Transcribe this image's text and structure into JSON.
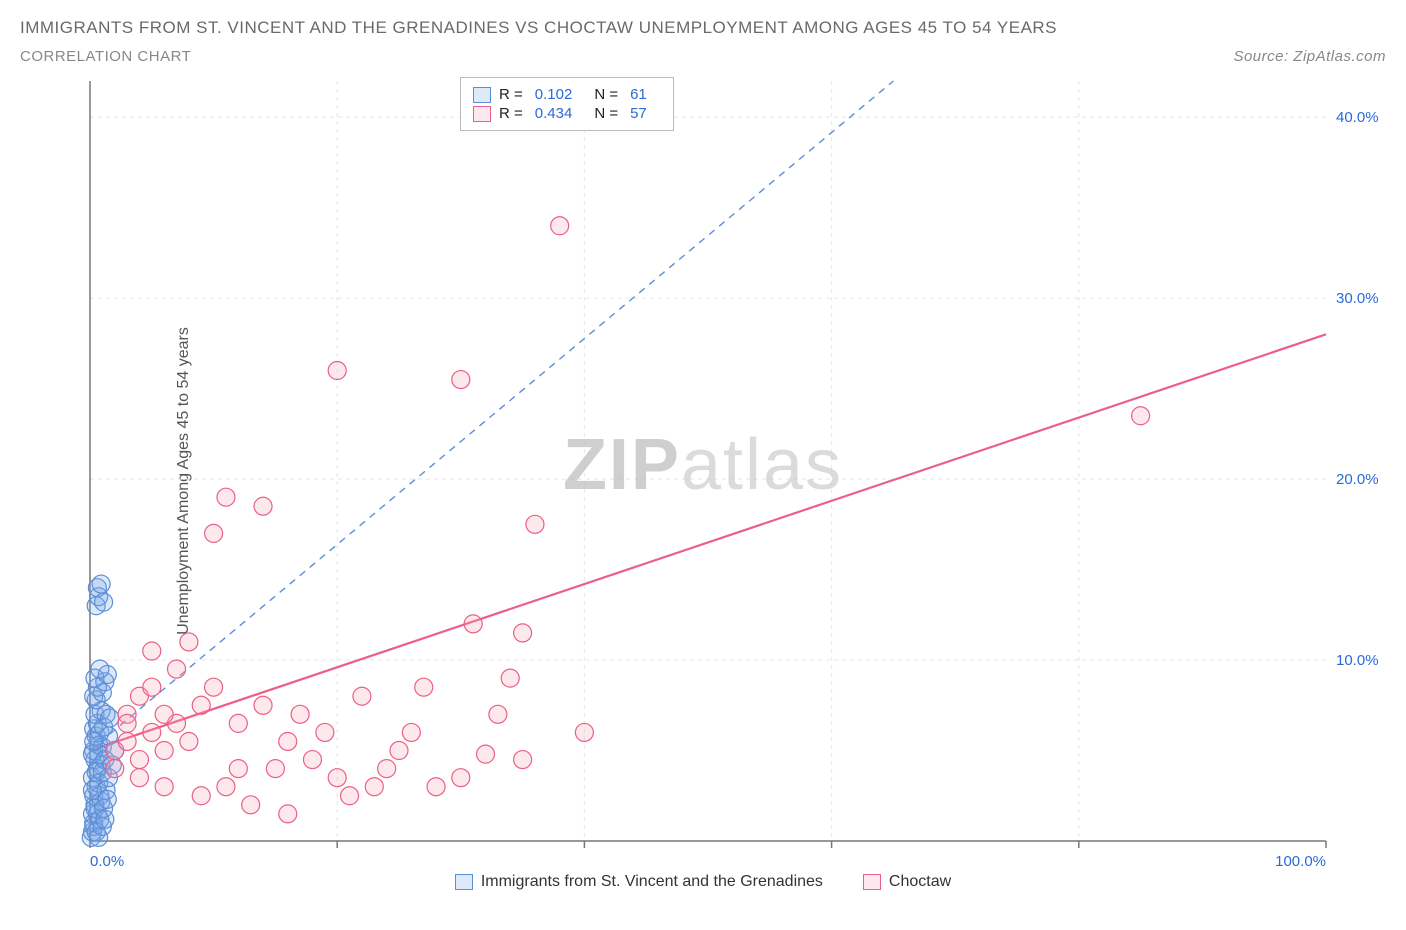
{
  "title": "IMMIGRANTS FROM ST. VINCENT AND THE GRENADINES VS CHOCTAW UNEMPLOYMENT AMONG AGES 45 TO 54 YEARS",
  "subtitle": "CORRELATION CHART",
  "source": "Source: ZipAtlas.com",
  "watermark_bold": "ZIP",
  "watermark_light": "atlas",
  "y_axis_label": "Unemployment Among Ages 45 to 54 years",
  "chart": {
    "type": "scatter",
    "xlim": [
      0,
      100
    ],
    "ylim": [
      0,
      42
    ],
    "x_ticks": [
      0,
      20,
      40,
      60,
      80,
      100
    ],
    "x_tick_labels": [
      "0.0%",
      "",
      "",
      "",
      "",
      "100.0%"
    ],
    "y_ticks": [
      10,
      20,
      30,
      40
    ],
    "y_tick_labels": [
      "10.0%",
      "20.0%",
      "30.0%",
      "40.0%"
    ],
    "grid_color": "#e5e5e5",
    "background_color": "#ffffff",
    "axis_color": "#777777",
    "marker_radius": 9,
    "marker_stroke_width": 1.2,
    "series": [
      {
        "name": "Immigrants from St. Vincent and the Grenadines",
        "fill_color": "#7aa8e6",
        "fill_opacity": 0.25,
        "stroke_color": "#5b8ed8",
        "trend": {
          "style": "dashed",
          "color": "#5b8ed8",
          "width": 1.4,
          "x1": 0,
          "y1": 5,
          "x2": 65,
          "y2": 42
        },
        "R": "0.102",
        "N": "61",
        "points": [
          [
            0.1,
            0.2
          ],
          [
            0.2,
            0.5
          ],
          [
            0.3,
            1.0
          ],
          [
            0.2,
            1.5
          ],
          [
            0.4,
            2.0
          ],
          [
            0.3,
            2.5
          ],
          [
            0.5,
            3.0
          ],
          [
            0.2,
            3.5
          ],
          [
            0.6,
            4.0
          ],
          [
            0.4,
            4.5
          ],
          [
            0.3,
            5.0
          ],
          [
            0.7,
            5.3
          ],
          [
            0.5,
            5.8
          ],
          [
            0.3,
            6.2
          ],
          [
            0.8,
            6.0
          ],
          [
            0.6,
            6.5
          ],
          [
            0.4,
            7.0
          ],
          [
            0.9,
            7.2
          ],
          [
            0.5,
            7.8
          ],
          [
            0.3,
            8.0
          ],
          [
            1.0,
            8.2
          ],
          [
            0.6,
            8.5
          ],
          [
            1.2,
            8.8
          ],
          [
            0.4,
            9.0
          ],
          [
            1.4,
            9.2
          ],
          [
            0.8,
            9.5
          ],
          [
            1.0,
            5.2
          ],
          [
            1.5,
            5.8
          ],
          [
            0.7,
            4.8
          ],
          [
            1.1,
            6.3
          ],
          [
            1.3,
            7.0
          ],
          [
            0.9,
            4.2
          ],
          [
            1.6,
            6.8
          ],
          [
            0.5,
            3.8
          ],
          [
            0.2,
            4.8
          ],
          [
            0.3,
            5.5
          ],
          [
            0.7,
            3.2
          ],
          [
            1.0,
            3.8
          ],
          [
            1.2,
            4.5
          ],
          [
            0.8,
            2.5
          ],
          [
            0.5,
            13.0
          ],
          [
            0.7,
            13.5
          ],
          [
            0.6,
            14.0
          ],
          [
            0.9,
            14.2
          ],
          [
            1.1,
            13.2
          ],
          [
            0.3,
            0.8
          ],
          [
            0.6,
            1.5
          ],
          [
            0.9,
            2.2
          ],
          [
            1.3,
            2.8
          ],
          [
            1.5,
            3.5
          ],
          [
            1.8,
            4.2
          ],
          [
            2.0,
            5.0
          ],
          [
            0.4,
            1.8
          ],
          [
            0.8,
            1.2
          ],
          [
            1.1,
            1.8
          ],
          [
            1.4,
            2.3
          ],
          [
            0.2,
            2.8
          ],
          [
            0.5,
            0.5
          ],
          [
            0.7,
            0.2
          ],
          [
            1.0,
            0.8
          ],
          [
            1.2,
            1.2
          ]
        ]
      },
      {
        "name": "Choctaw",
        "fill_color": "#f5a3b8",
        "fill_opacity": 0.25,
        "stroke_color": "#ec5f86",
        "trend": {
          "style": "solid",
          "color": "#ec5f86",
          "width": 2.2,
          "x1": 0,
          "y1": 5,
          "x2": 100,
          "y2": 28
        },
        "R": "0.434",
        "N": "57",
        "points": [
          [
            2,
            5.0
          ],
          [
            3,
            5.5
          ],
          [
            4,
            4.5
          ],
          [
            5,
            6.0
          ],
          [
            3,
            7.0
          ],
          [
            6,
            5.0
          ],
          [
            7,
            6.5
          ],
          [
            8,
            5.5
          ],
          [
            4,
            8.0
          ],
          [
            10,
            8.5
          ],
          [
            5,
            10.5
          ],
          [
            12,
            6.5
          ],
          [
            14,
            7.5
          ],
          [
            15,
            4.0
          ],
          [
            8,
            11.0
          ],
          [
            11,
            19.0
          ],
          [
            14,
            18.5
          ],
          [
            10,
            17.0
          ],
          [
            18,
            4.5
          ],
          [
            20,
            3.5
          ],
          [
            22,
            8.0
          ],
          [
            24,
            4.0
          ],
          [
            25,
            5.0
          ],
          [
            27,
            8.5
          ],
          [
            20,
            26.0
          ],
          [
            28,
            3.0
          ],
          [
            30,
            25.5
          ],
          [
            31,
            12.0
          ],
          [
            33,
            7.0
          ],
          [
            35,
            4.5
          ],
          [
            35,
            11.5
          ],
          [
            36,
            17.5
          ],
          [
            30,
            3.5
          ],
          [
            16,
            5.5
          ],
          [
            17,
            7.0
          ],
          [
            19,
            6.0
          ],
          [
            23,
            3.0
          ],
          [
            26,
            6.0
          ],
          [
            32,
            4.8
          ],
          [
            34,
            9.0
          ],
          [
            38,
            34.0
          ],
          [
            2,
            4.0
          ],
          [
            4,
            3.5
          ],
          [
            6,
            3.0
          ],
          [
            9,
            2.5
          ],
          [
            11,
            3.0
          ],
          [
            13,
            2.0
          ],
          [
            16,
            1.5
          ],
          [
            21,
            2.5
          ],
          [
            40,
            6.0
          ],
          [
            3,
            6.5
          ],
          [
            5,
            8.5
          ],
          [
            7,
            9.5
          ],
          [
            9,
            7.5
          ],
          [
            85,
            23.5
          ],
          [
            6,
            7.0
          ],
          [
            12,
            4.0
          ]
        ]
      }
    ]
  },
  "legend_bottom": [
    {
      "label": "Immigrants from St. Vincent and the Grenadines",
      "fill": "#7aa8e6",
      "stroke": "#5b8ed8"
    },
    {
      "label": "Choctaw",
      "fill": "#f5a3b8",
      "stroke": "#ec5f86"
    }
  ]
}
